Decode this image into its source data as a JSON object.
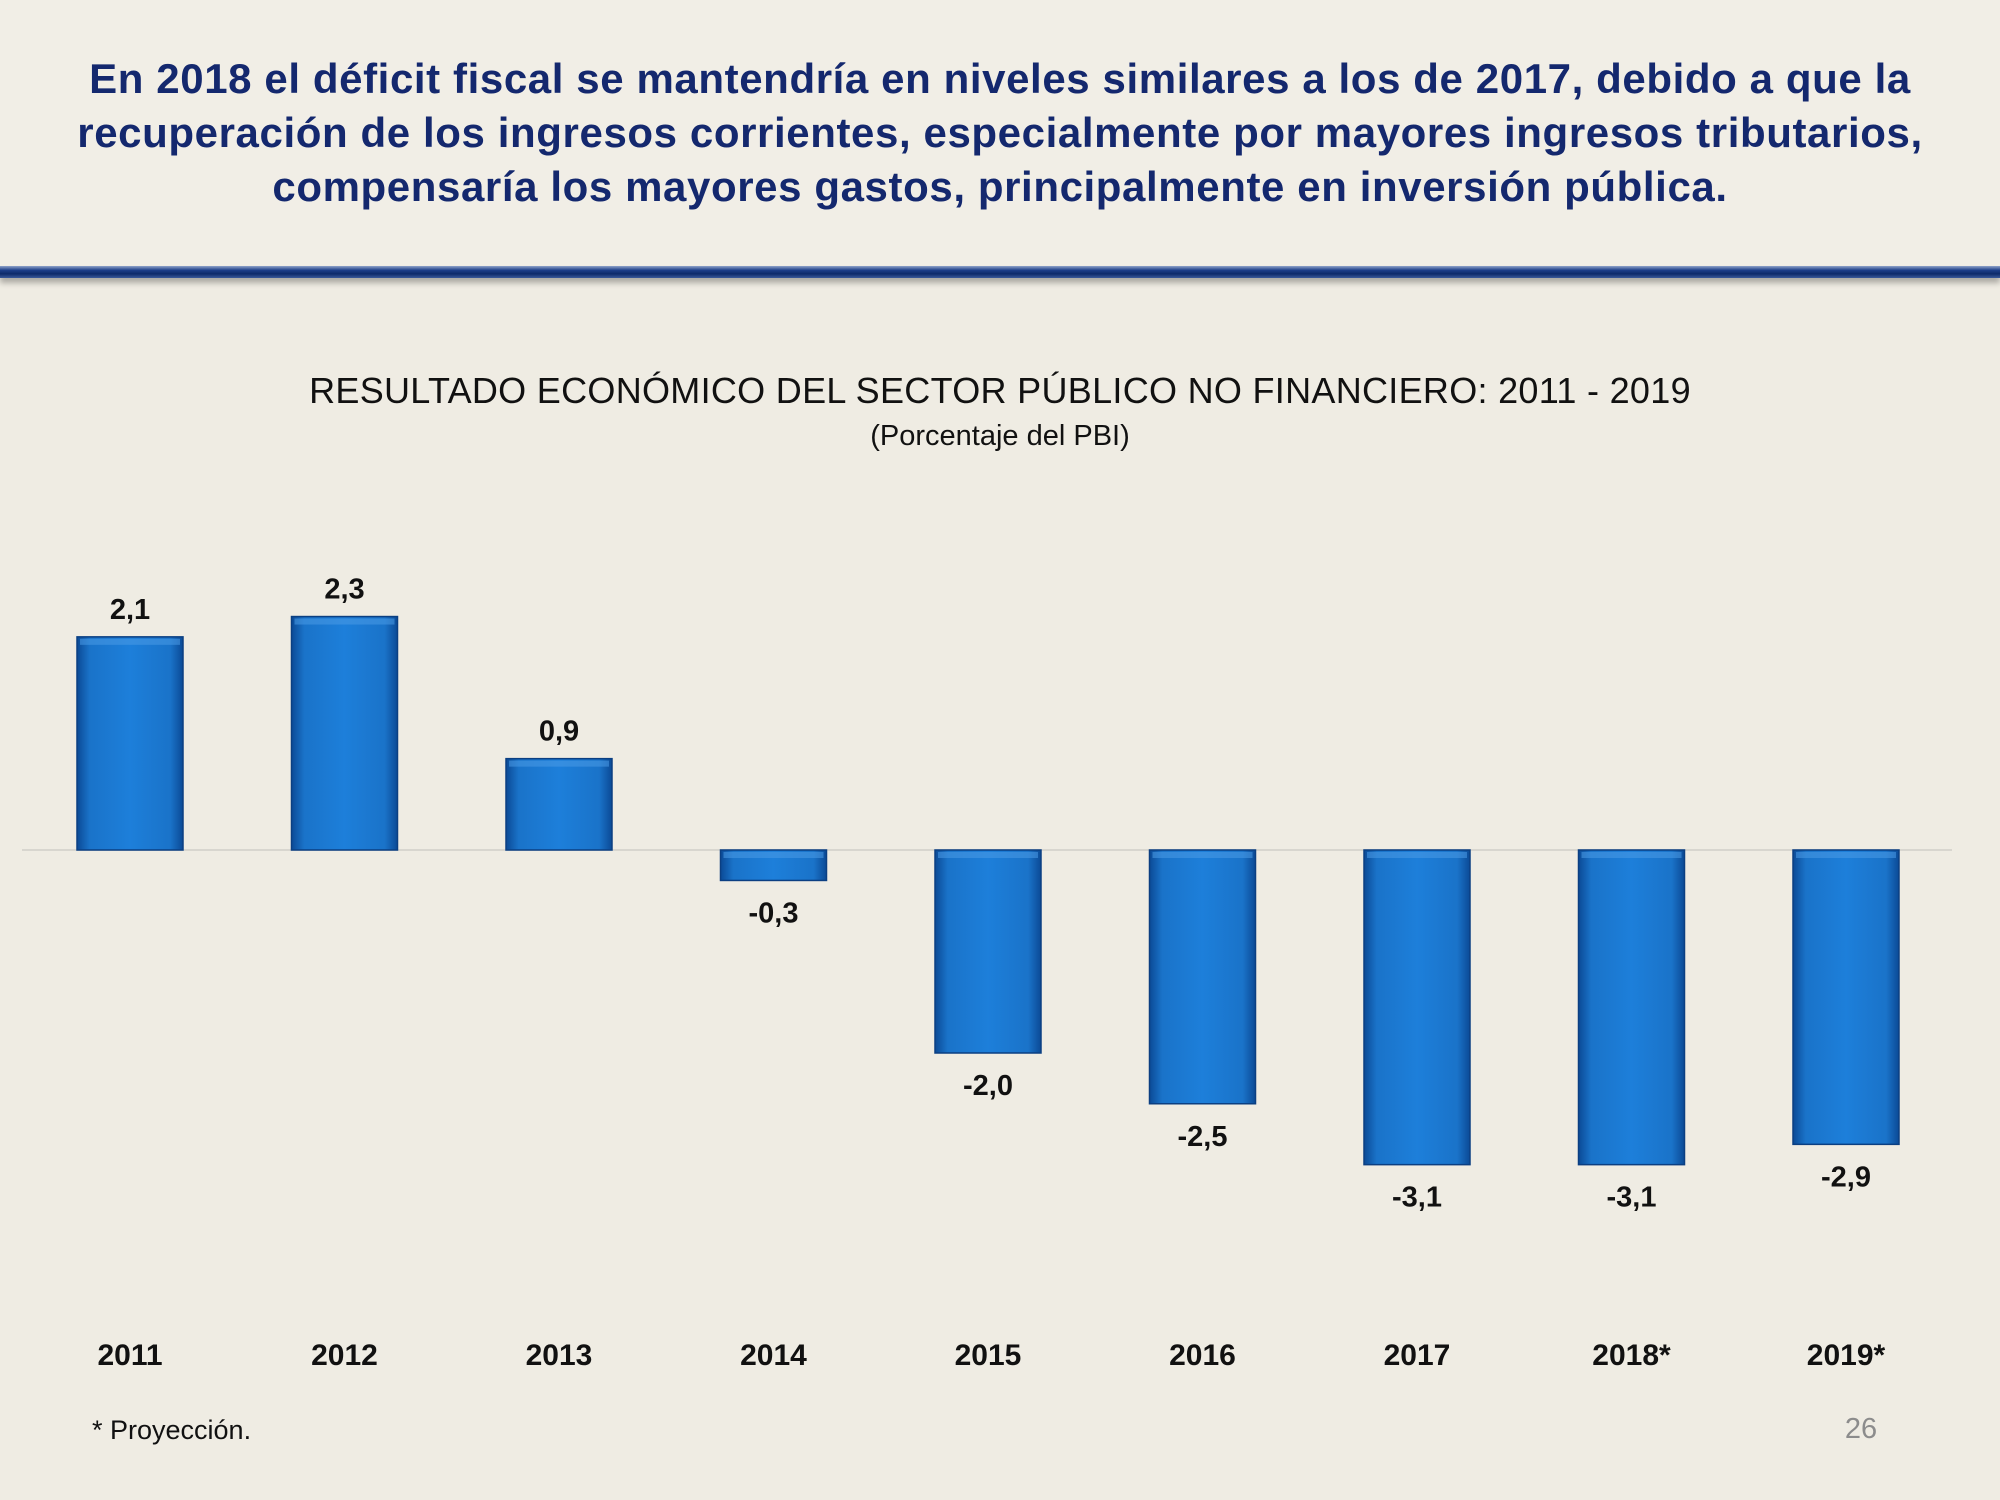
{
  "headline": "En 2018 el déficit fiscal se mantendría en niveles similares a los de 2017, debido a que la recuperación de los ingresos corrientes, especialmente por mayores ingresos tributarios, compensaría los mayores gastos, principalmente en inversión pública.",
  "chart_data": {
    "type": "bar",
    "title": "RESULTADO ECONÓMICO DEL SECTOR PÚBLICO NO FINANCIERO:  2011 - 2019",
    "subtitle": "(Porcentaje del PBI)",
    "categories": [
      "2011",
      "2012",
      "2013",
      "2014",
      "2015",
      "2016",
      "2017",
      "2018*",
      "2019*"
    ],
    "values": [
      2.1,
      2.3,
      0.9,
      -0.3,
      -2.0,
      -2.5,
      -3.1,
      -3.1,
      -2.9
    ],
    "data_labels": [
      "2,1",
      "2,3",
      "0,9",
      "-0,3",
      "-2,0",
      "-2,5",
      "-3,1",
      "-3,1",
      "-2,9"
    ],
    "xlabel": "",
    "ylabel": "",
    "bar_color": "#1469c0",
    "grid": false
  },
  "footnote": "* Proyección.",
  "page_number": "26"
}
